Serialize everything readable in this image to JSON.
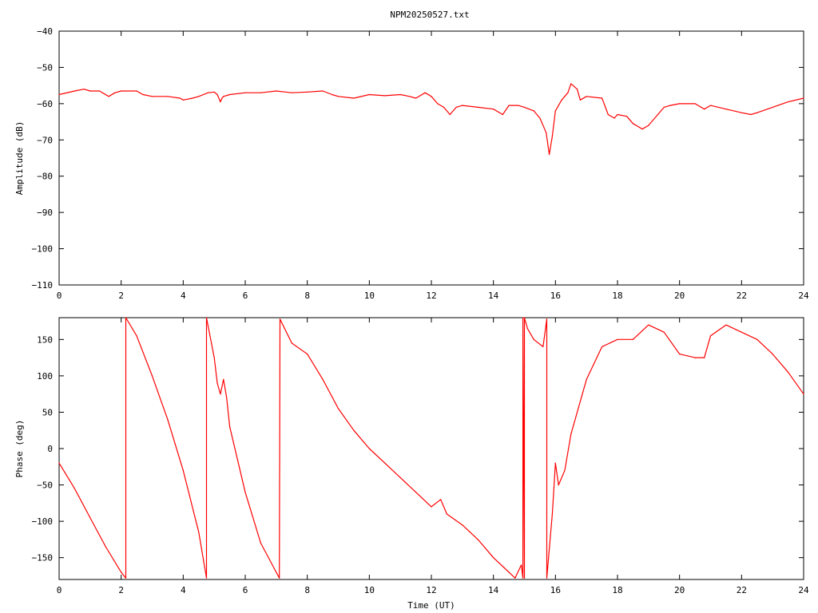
{
  "chart_data": [
    {
      "type": "line",
      "title": "NPM20250527.txt",
      "xlabel": "",
      "ylabel": "Amplitude (dB)",
      "xlim": [
        0,
        24
      ],
      "ylim": [
        -110,
        -40
      ],
      "x_ticks": [
        "0",
        "2",
        "4",
        "6",
        "8",
        "10",
        "12",
        "14",
        "16",
        "18",
        "20",
        "22",
        "24"
      ],
      "y_ticks": [
        "-40",
        "-50",
        "-60",
        "-70",
        "-80",
        "-90",
        "-100",
        "-110"
      ],
      "grid": false,
      "color": "#ff0000",
      "series": [
        {
          "x": [
            0,
            0.5,
            0.8,
            1.0,
            1.3,
            1.6,
            1.8,
            2.0,
            2.5,
            2.7,
            3.0,
            3.5,
            3.9,
            4.0,
            4.3,
            4.5,
            4.8,
            5.0,
            5.1,
            5.2,
            5.25,
            5.3,
            5.5,
            6.0,
            6.5,
            7.0,
            7.3,
            7.5,
            8.0,
            8.5,
            8.8,
            9.0,
            9.5,
            10.0,
            10.5,
            11.0,
            11.3,
            11.5,
            11.8,
            12.0,
            12.2,
            12.4,
            12.6,
            12.8,
            13.0,
            13.5,
            14.0,
            14.3,
            14.5,
            14.8,
            15.0,
            15.3,
            15.5,
            15.7,
            15.8,
            15.9,
            16.0,
            16.2,
            16.4,
            16.5,
            16.7,
            16.8,
            17.0,
            17.5,
            17.7,
            17.9,
            18.0,
            18.3,
            18.5,
            18.7,
            18.8,
            19.0,
            19.3,
            19.5,
            19.7,
            20.0,
            20.5,
            20.8,
            21.0,
            21.5,
            22.0,
            22.3,
            22.5,
            23.0,
            23.5,
            24.0
          ],
          "y": [
            -57.5,
            -56.5,
            -56.0,
            -56.5,
            -56.5,
            -58.0,
            -57.0,
            -56.5,
            -56.5,
            -57.5,
            -58.0,
            -58.0,
            -58.5,
            -59.0,
            -58.5,
            -58.0,
            -57.0,
            -56.8,
            -57.5,
            -59.5,
            -58.5,
            -58.0,
            -57.5,
            -57.0,
            -57.0,
            -56.5,
            -56.8,
            -57.0,
            -56.8,
            -56.5,
            -57.5,
            -58.0,
            -58.5,
            -57.5,
            -57.8,
            -57.5,
            -58.0,
            -58.5,
            -57.0,
            -58.0,
            -60.0,
            -61.0,
            -63.0,
            -61.0,
            -60.5,
            -61.0,
            -61.5,
            -63.0,
            -60.5,
            -60.5,
            -61.0,
            -62.0,
            -64.0,
            -68.0,
            -74.0,
            -69.0,
            -62.0,
            -59.0,
            -57.0,
            -54.5,
            -56.0,
            -59.0,
            -58.0,
            -58.5,
            -63.0,
            -64.0,
            -63.0,
            -63.5,
            -65.5,
            -66.5,
            -67.0,
            -66.0,
            -63.0,
            -61.0,
            -60.5,
            -60.0,
            -60.0,
            -61.5,
            -60.5,
            -61.5,
            -62.5,
            -63.0,
            -62.5,
            -61.0,
            -59.5,
            -58.5
          ]
        }
      ]
    },
    {
      "type": "line",
      "title": "",
      "xlabel": "Time (UT)",
      "ylabel": "Phase (deg)",
      "xlim": [
        0,
        24
      ],
      "ylim": [
        -180,
        180
      ],
      "x_ticks": [
        "0",
        "2",
        "4",
        "6",
        "8",
        "10",
        "12",
        "14",
        "16",
        "18",
        "20",
        "22",
        "24"
      ],
      "y_ticks": [
        "150",
        "100",
        "50",
        "0",
        "-50",
        "-100",
        "-150"
      ],
      "y_tick_values": [
        150,
        100,
        50,
        0,
        -50,
        -100,
        -150
      ],
      "grid": false,
      "color": "#ff0000",
      "series": [
        {
          "x": [
            0,
            0.5,
            1.0,
            1.5,
            2.0,
            2.15,
            2.15,
            2.5,
            3.0,
            3.5,
            4.0,
            4.5,
            4.75,
            4.75,
            5.0,
            5.1,
            5.2,
            5.3,
            5.4,
            5.5,
            6.0,
            6.5,
            7.0,
            7.1,
            7.12,
            7.5,
            8.0,
            8.5,
            9.0,
            9.5,
            10.0,
            10.5,
            11.0,
            11.5,
            12.0,
            12.3,
            12.5,
            13.0,
            13.5,
            14.0,
            14.5,
            14.7,
            14.9,
            14.95,
            14.95,
            15.0,
            15.0,
            15.1,
            15.3,
            15.6,
            15.72,
            15.72,
            15.9,
            16.0,
            16.1,
            16.3,
            16.5,
            17.0,
            17.5,
            18.0,
            18.5,
            19.0,
            19.5,
            20.0,
            20.5,
            20.8,
            21.0,
            21.5,
            22.0,
            22.5,
            23.0,
            23.5,
            24.0
          ],
          "y": [
            -20,
            -55,
            -95,
            -135,
            -170,
            -178,
            180,
            155,
            100,
            40,
            -30,
            -115,
            -178,
            180,
            125,
            90,
            75,
            95,
            70,
            30,
            -60,
            -130,
            -170,
            -178,
            178,
            145,
            130,
            95,
            55,
            25,
            0,
            -20,
            -40,
            -60,
            -80,
            -70,
            -90,
            -105,
            -125,
            -150,
            -170,
            -178,
            -160,
            -178,
            180,
            -178,
            180,
            165,
            150,
            140,
            178,
            -178,
            -90,
            -20,
            -50,
            -30,
            20,
            95,
            140,
            150,
            150,
            170,
            160,
            130,
            125,
            125,
            155,
            170,
            160,
            150,
            130,
            105,
            75
          ]
        }
      ]
    }
  ]
}
